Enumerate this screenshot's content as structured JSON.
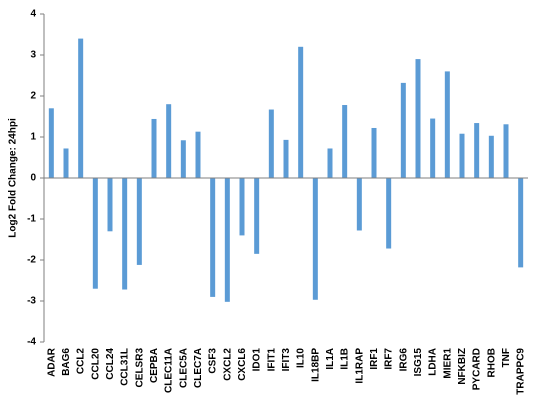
{
  "chart_data": {
    "type": "bar",
    "title": "",
    "xlabel": "",
    "ylabel": "Log2 Fold Change: 24hpi",
    "ylim": [
      -4,
      4
    ],
    "yticks": [
      -4,
      -3,
      -2,
      -1,
      0,
      1,
      2,
      3,
      4
    ],
    "grid": false,
    "legend": "none",
    "bar_color": "#5B9BD5",
    "categories": [
      "ADAR",
      "BAG6",
      "CCL2",
      "CCL20",
      "CCL24",
      "CCL31L",
      "CELSR3",
      "CEPBA",
      "CLEC11A",
      "CLEC5A",
      "CLEC7A",
      "CSF3",
      "CXCL2",
      "CXCL6",
      "IDO1",
      "IFIT1",
      "IFIT3",
      "IL10",
      "IL18BP",
      "IL1A",
      "IL1B",
      "IL1RAP",
      "IRF1",
      "IRF7",
      "IRG6",
      "ISG15",
      "LDHA",
      "MIER1",
      "NFKBIZ",
      "PYCARD",
      "RHOB",
      "TNF",
      "TRAPPC9"
    ],
    "values": [
      1.7,
      0.72,
      3.4,
      -2.7,
      -1.3,
      -2.72,
      -2.12,
      1.44,
      1.8,
      0.92,
      1.13,
      -2.9,
      -3.02,
      -1.4,
      -1.85,
      1.67,
      0.93,
      3.2,
      -2.97,
      0.72,
      1.78,
      -1.28,
      1.22,
      -1.72,
      2.32,
      2.9,
      1.45,
      2.6,
      1.08,
      1.34,
      1.03,
      1.31,
      -2.18
    ]
  }
}
